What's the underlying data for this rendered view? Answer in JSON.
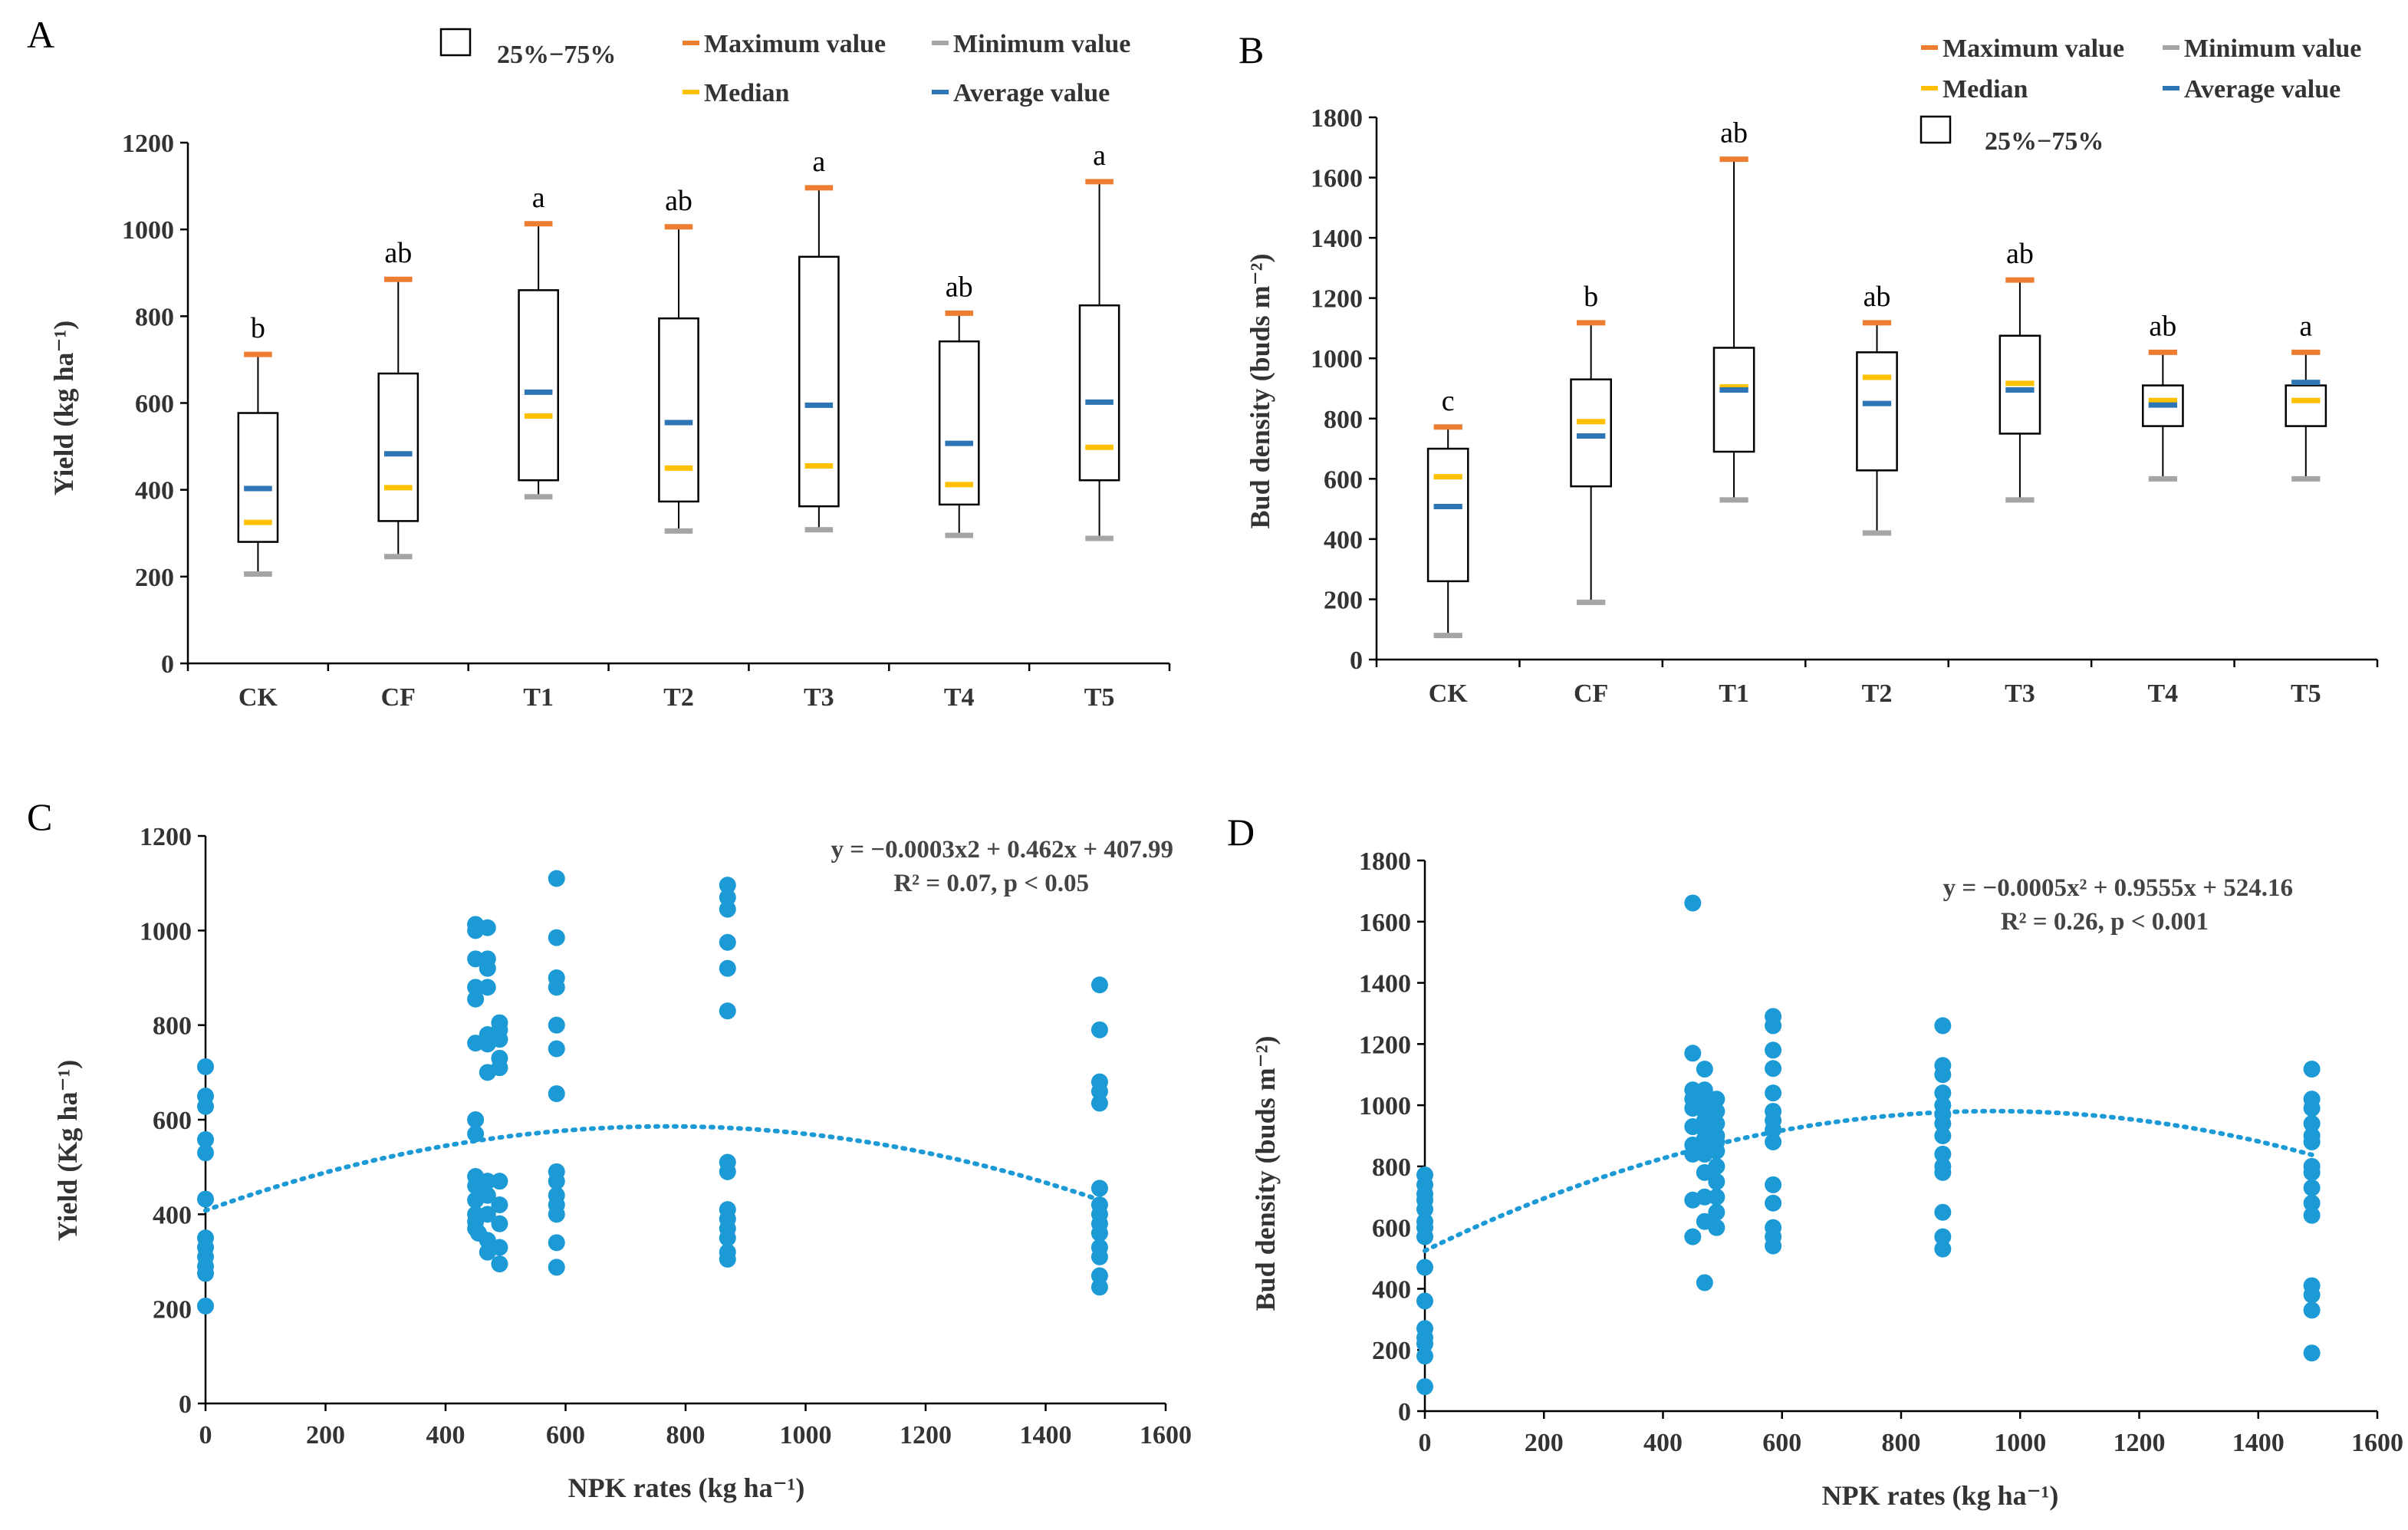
{
  "legend": {
    "box_label": "25%−75%",
    "max_label": "Maximum value",
    "min_label": "Minimum value",
    "median_label": "Median",
    "avg_label": "Average value"
  },
  "colors": {
    "max": "#ED7D31",
    "min": "#A5A5A5",
    "median": "#FFC000",
    "avg": "#2E75B6",
    "scatter": "#1B9AD6",
    "axis": "#000000",
    "text": "#333333"
  },
  "chart_data": [
    {
      "id": "A",
      "letter": "A",
      "type": "box",
      "ylabel": "Yield (kg ha⁻¹)",
      "ylim": [
        0,
        1200
      ],
      "yticks": [
        0,
        200,
        400,
        600,
        800,
        1000,
        1200
      ],
      "categories": [
        "CK",
        "CF",
        "T1",
        "T2",
        "T3",
        "T4",
        "T5"
      ],
      "max": [
        712,
        885,
        1013,
        1006,
        1096,
        807,
        1110
      ],
      "min": [
        206,
        246,
        384,
        305,
        308,
        295,
        288
      ],
      "q3": [
        577,
        668,
        860,
        795,
        937,
        742,
        825
      ],
      "q1": [
        280,
        328,
        422,
        373,
        362,
        366,
        422
      ],
      "median": [
        325,
        405,
        570,
        450,
        455,
        412,
        498
      ],
      "mean": [
        403,
        483,
        625,
        555,
        595,
        507,
        602
      ],
      "significance": [
        "b",
        "ab",
        "a",
        "ab",
        "a",
        "ab",
        "a"
      ]
    },
    {
      "id": "B",
      "letter": "B",
      "type": "box",
      "ylabel": "Bud density (buds m⁻²)",
      "ylim": [
        0,
        1800
      ],
      "yticks": [
        0,
        200,
        400,
        600,
        800,
        1000,
        1200,
        1400,
        1600,
        1800
      ],
      "categories": [
        "CK",
        "CF",
        "T1",
        "T2",
        "T3",
        "T4",
        "T5"
      ],
      "max": [
        772,
        1118,
        1661,
        1118,
        1260,
        1020,
        1020
      ],
      "min": [
        80,
        190,
        530,
        420,
        530,
        600,
        600
      ],
      "q3": [
        700,
        930,
        1035,
        1020,
        1075,
        910,
        910
      ],
      "q1": [
        260,
        575,
        690,
        628,
        750,
        775,
        775
      ],
      "median": [
        607,
        790,
        905,
        937,
        917,
        860,
        860
      ],
      "mean": [
        508,
        742,
        895,
        850,
        895,
        845,
        920
      ],
      "significance": [
        "c",
        "b",
        "ab",
        "ab",
        "ab",
        "ab",
        "a"
      ]
    },
    {
      "id": "C",
      "letter": "C",
      "type": "scatter",
      "xlabel": "NPK rates (kg ha⁻¹)",
      "ylabel": "Yield (Kg ha⁻¹)",
      "xlim": [
        0,
        1600
      ],
      "ylim": [
        0,
        1200
      ],
      "xticks": [
        0,
        200,
        400,
        600,
        800,
        1000,
        1200,
        1400,
        1600
      ],
      "yticks": [
        0,
        200,
        400,
        600,
        800,
        1000,
        1200
      ],
      "equation": "y = −0.0003x2 + 0.462x + 407.99",
      "r2": "R² = 0.07, p < 0.05",
      "fit": {
        "a": -0.0003,
        "b": 0.462,
        "c": 407.99,
        "x_range": [
          0,
          1490
        ]
      },
      "points": {
        "x": [
          0,
          0,
          0,
          0,
          0,
          0,
          0,
          0,
          0,
          0,
          0,
          0,
          450,
          450,
          450,
          450,
          450,
          450,
          450,
          450,
          450,
          450,
          450,
          450,
          450,
          450,
          455,
          470,
          470,
          470,
          470,
          470,
          470,
          470,
          470,
          470,
          470,
          470,
          470,
          490,
          490,
          490,
          490,
          490,
          490,
          490,
          490,
          490,
          490,
          585,
          585,
          585,
          585,
          585,
          585,
          585,
          585,
          585,
          585,
          585,
          585,
          585,
          585,
          870,
          870,
          870,
          870,
          870,
          870,
          870,
          870,
          870,
          870,
          870,
          870,
          870,
          870,
          1490,
          1490,
          1490,
          1490,
          1490,
          1490,
          1490,
          1490,
          1490,
          1490,
          1490,
          1490,
          1490,
          1490
        ],
        "y": [
          712,
          650,
          628,
          558,
          530,
          432,
          350,
          330,
          310,
          290,
          275,
          206,
          1013,
          1000,
          940,
          880,
          855,
          762,
          600,
          570,
          480,
          460,
          430,
          400,
          385,
          370,
          360,
          1006,
          940,
          920,
          880,
          780,
          760,
          700,
          470,
          440,
          400,
          345,
          320,
          805,
          790,
          770,
          730,
          710,
          470,
          420,
          380,
          330,
          295,
          1110,
          985,
          900,
          880,
          800,
          750,
          655,
          490,
          470,
          440,
          420,
          400,
          340,
          288,
          1096,
          1070,
          1045,
          975,
          920,
          830,
          510,
          490,
          410,
          390,
          370,
          350,
          320,
          305,
          885,
          790,
          680,
          660,
          635,
          455,
          420,
          400,
          380,
          360,
          330,
          310,
          270,
          246
        ]
      }
    },
    {
      "id": "D",
      "letter": "D",
      "type": "scatter",
      "xlabel": "NPK rates (kg ha⁻¹)",
      "ylabel": "Bud density (buds m⁻²)",
      "xlim": [
        0,
        1600
      ],
      "ylim": [
        0,
        1800
      ],
      "xticks": [
        0,
        200,
        400,
        600,
        800,
        1000,
        1200,
        1400,
        1600
      ],
      "yticks": [
        0,
        200,
        400,
        600,
        800,
        1000,
        1200,
        1400,
        1600,
        1800
      ],
      "equation": "y = −0.0005x² + 0.9555x + 524.16",
      "r2": "R² = 0.26, p < 0.001",
      "fit": {
        "a": -0.0005,
        "b": 0.9555,
        "c": 524.16,
        "x_range": [
          0,
          1490
        ]
      },
      "points": {
        "x": [
          0,
          0,
          0,
          0,
          0,
          0,
          0,
          0,
          0,
          0,
          0,
          0,
          0,
          0,
          0,
          450,
          450,
          450,
          450,
          450,
          450,
          450,
          450,
          450,
          450,
          470,
          470,
          470,
          470,
          470,
          470,
          470,
          470,
          470,
          470,
          470,
          470,
          490,
          490,
          490,
          490,
          490,
          490,
          490,
          490,
          490,
          490,
          490,
          585,
          585,
          585,
          585,
          585,
          585,
          585,
          585,
          585,
          585,
          585,
          585,
          585,
          585,
          870,
          870,
          870,
          870,
          870,
          870,
          870,
          870,
          870,
          870,
          870,
          870,
          870,
          870,
          1490,
          1490,
          1490,
          1490,
          1490,
          1490,
          1490,
          1490,
          1490,
          1490,
          1490,
          1490,
          1490,
          1490,
          1490
        ],
        "y": [
          772,
          740,
          710,
          690,
          660,
          620,
          600,
          570,
          470,
          360,
          270,
          240,
          220,
          180,
          80,
          1661,
          1170,
          1050,
          1020,
          990,
          930,
          870,
          840,
          690,
          570,
          1118,
          1050,
          1000,
          980,
          950,
          920,
          890,
          840,
          780,
          700,
          620,
          420,
          1020,
          980,
          940,
          900,
          880,
          850,
          800,
          750,
          700,
          650,
          600,
          1290,
          1260,
          1180,
          1120,
          1040,
          980,
          950,
          920,
          880,
          740,
          680,
          600,
          570,
          540,
          1260,
          1130,
          1100,
          1040,
          1000,
          970,
          940,
          900,
          840,
          800,
          780,
          650,
          570,
          530,
          1118,
          1020,
          990,
          940,
          900,
          880,
          800,
          780,
          730,
          680,
          640,
          410,
          380,
          330,
          190
        ]
      }
    }
  ]
}
